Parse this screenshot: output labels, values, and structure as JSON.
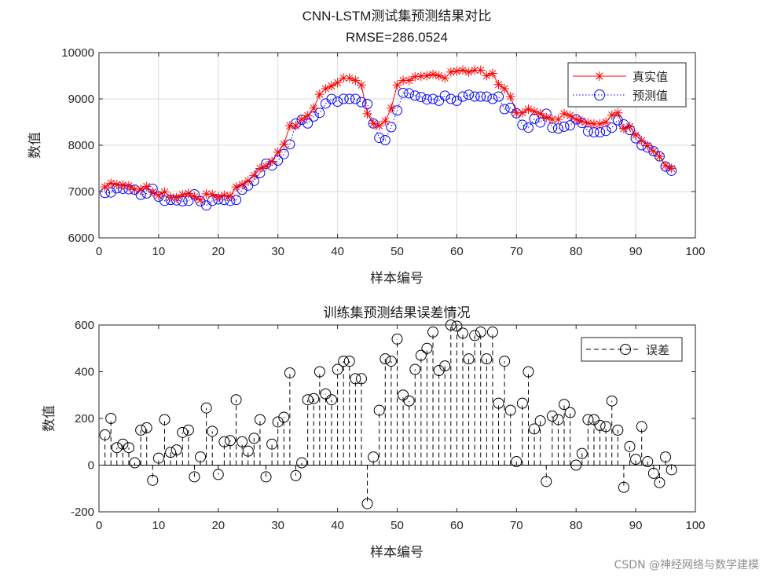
{
  "watermark": "CSDN @神经网络与数学建模",
  "chart_data": [
    {
      "type": "line",
      "title": "CNN-LSTM测试集预测结果对比",
      "subtitle": "RMSE=286.0524",
      "xlabel": "样本编号",
      "ylabel": "数值",
      "xlim": [
        0,
        100
      ],
      "ylim": [
        6000,
        10000
      ],
      "xticks": [
        0,
        10,
        20,
        30,
        40,
        50,
        60,
        70,
        80,
        90,
        100
      ],
      "yticks": [
        6000,
        7000,
        8000,
        9000,
        10000
      ],
      "grid": true,
      "legend_position": "top-right",
      "x": [
        1,
        2,
        3,
        4,
        5,
        6,
        7,
        8,
        9,
        10,
        11,
        12,
        13,
        14,
        15,
        16,
        17,
        18,
        19,
        20,
        21,
        22,
        23,
        24,
        25,
        26,
        27,
        28,
        29,
        30,
        31,
        32,
        33,
        34,
        35,
        36,
        37,
        38,
        39,
        40,
        41,
        42,
        43,
        44,
        45,
        46,
        47,
        48,
        49,
        50,
        51,
        52,
        53,
        54,
        55,
        56,
        57,
        58,
        59,
        60,
        61,
        62,
        63,
        64,
        65,
        66,
        67,
        68,
        69,
        70,
        71,
        72,
        73,
        74,
        75,
        76,
        77,
        78,
        79,
        80,
        81,
        82,
        83,
        84,
        85,
        86,
        87,
        88,
        89,
        90,
        91,
        92,
        93,
        94,
        95,
        96
      ],
      "series": [
        {
          "name": "真实值",
          "color": "#ff0000",
          "marker": "asterisk",
          "style": "solid",
          "values": [
            7100,
            7180,
            7150,
            7140,
            7120,
            7050,
            7050,
            7110,
            6990,
            6920,
            6990,
            6880,
            6870,
            6930,
            6960,
            6890,
            6820,
            6950,
            6940,
            6880,
            6920,
            6900,
            7100,
            7150,
            7230,
            7350,
            7500,
            7550,
            7650,
            7850,
            8020,
            8420,
            8420,
            8560,
            8640,
            8800,
            9100,
            9220,
            9280,
            9350,
            9450,
            9450,
            9400,
            9300,
            8680,
            8470,
            8420,
            8520,
            8800,
            9300,
            9400,
            9400,
            9480,
            9490,
            9500,
            9530,
            9500,
            9450,
            9580,
            9600,
            9620,
            9580,
            9620,
            9620,
            9500,
            9550,
            9310,
            9220,
            9050,
            8700,
            8700,
            8780,
            8730,
            8680,
            8600,
            8560,
            8560,
            8680,
            8640,
            8560,
            8520,
            8480,
            8460,
            8460,
            8500,
            8650,
            8700,
            8360,
            8400,
            8220,
            8100,
            7990,
            7870,
            7760,
            7560,
            7500
          ]
        },
        {
          "name": "预测值",
          "color": "#0000ff",
          "marker": "circle",
          "style": "dotted",
          "values": [
            6970,
            6980,
            7070,
            7060,
            7050,
            7040,
            6930,
            6960,
            7060,
            6890,
            6800,
            6820,
            6810,
            6790,
            6800,
            6940,
            6790,
            6700,
            6800,
            6830,
            6820,
            6800,
            6820,
            7040,
            7130,
            7230,
            7400,
            7600,
            7560,
            7670,
            7810,
            8020,
            8470,
            8550,
            8470,
            8620,
            8700,
            8900,
            9000,
            8940,
            9000,
            9000,
            9000,
            8930,
            8890,
            8470,
            8160,
            8110,
            8390,
            8750,
            9130,
            9120,
            9070,
            9040,
            8990,
            9000,
            8960,
            9070,
            9000,
            8960,
            9050,
            9090,
            9050,
            9050,
            9050,
            9000,
            9050,
            8780,
            8810,
            8690,
            8440,
            8380,
            8570,
            8490,
            8680,
            8380,
            8360,
            8400,
            8430,
            8560,
            8480,
            8300,
            8280,
            8280,
            8310,
            8380,
            8540,
            8450,
            8330,
            8150,
            8000,
            7950,
            7870,
            7760,
            7540,
            7450
          ]
        }
      ]
    },
    {
      "type": "stem",
      "title": "训练集预测结果误差情况",
      "xlabel": "样本编号",
      "ylabel": "数值",
      "xlim": [
        0,
        100
      ],
      "ylim": [
        -200,
        600
      ],
      "xticks": [
        0,
        10,
        20,
        30,
        40,
        50,
        60,
        70,
        80,
        90,
        100
      ],
      "yticks": [
        -200,
        0,
        200,
        400,
        600
      ],
      "grid": false,
      "legend_position": "top-right",
      "series": [
        {
          "name": "误差",
          "color": "#000000",
          "marker": "circle",
          "style": "dashed",
          "x": [
            1,
            2,
            3,
            4,
            5,
            6,
            7,
            8,
            9,
            10,
            11,
            12,
            13,
            14,
            15,
            16,
            17,
            18,
            19,
            20,
            21,
            22,
            23,
            24,
            25,
            26,
            27,
            28,
            29,
            30,
            31,
            32,
            33,
            34,
            35,
            36,
            37,
            38,
            39,
            40,
            41,
            42,
            43,
            44,
            45,
            46,
            47,
            48,
            49,
            50,
            51,
            52,
            53,
            54,
            55,
            56,
            57,
            58,
            59,
            60,
            61,
            62,
            63,
            64,
            65,
            66,
            67,
            68,
            69,
            70,
            71,
            72,
            73,
            74,
            75,
            76,
            77,
            78,
            79,
            80,
            81,
            82,
            83,
            84,
            85,
            86,
            87,
            88,
            89,
            90,
            91,
            92,
            93,
            94,
            95,
            96
          ],
          "values": [
            130,
            200,
            75,
            90,
            75,
            10,
            150,
            160,
            -65,
            30,
            195,
            55,
            65,
            140,
            150,
            -50,
            35,
            245,
            145,
            -40,
            100,
            105,
            280,
            100,
            60,
            115,
            195,
            -50,
            90,
            185,
            205,
            395,
            -45,
            10,
            280,
            285,
            400,
            305,
            280,
            410,
            445,
            445,
            370,
            370,
            -165,
            35,
            235,
            455,
            445,
            540,
            300,
            275,
            410,
            470,
            500,
            570,
            405,
            425,
            600,
            595,
            565,
            455,
            555,
            570,
            455,
            570,
            265,
            445,
            235,
            15,
            265,
            400,
            155,
            190,
            -70,
            210,
            195,
            260,
            225,
            0,
            50,
            195,
            195,
            170,
            165,
            275,
            150,
            -95,
            80,
            25,
            165,
            15,
            -35,
            -75,
            35,
            -20
          ]
        }
      ]
    }
  ]
}
